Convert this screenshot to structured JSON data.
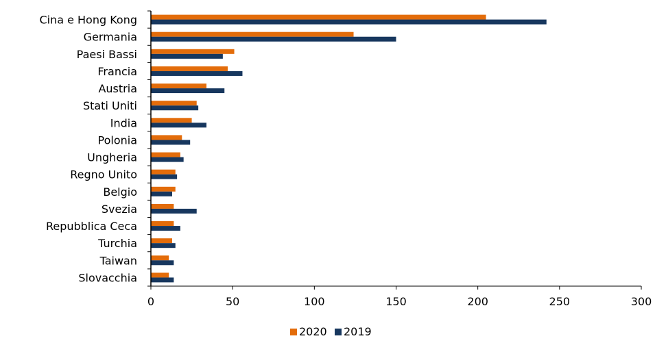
{
  "chart_data": {
    "type": "bar",
    "orientation": "horizontal",
    "categories": [
      "Cina e Hong Kong",
      "Germania",
      "Paesi Bassi",
      "Francia",
      "Austria",
      "Stati Uniti",
      "India",
      "Polonia",
      "Ungheria",
      "Regno Unito",
      "Belgio",
      "Svezia",
      "Repubblica Ceca",
      "Turchia",
      "Taiwan",
      "Slovacchia"
    ],
    "series": [
      {
        "name": "2020",
        "color": "#E36C0A",
        "values": [
          205,
          124,
          51,
          47,
          34,
          28,
          25,
          19,
          18,
          15,
          15,
          14,
          14,
          13,
          11,
          11
        ]
      },
      {
        "name": "2019",
        "color": "#17375E",
        "values": [
          242,
          150,
          44,
          56,
          45,
          29,
          34,
          24,
          20,
          16,
          13,
          28,
          18,
          15,
          14,
          14
        ]
      }
    ],
    "xlim": [
      0,
      300
    ],
    "xticks": [
      "0",
      "50",
      "100",
      "150",
      "200",
      "250",
      "300"
    ],
    "grid": false,
    "legend": "bottom-center",
    "title": "",
    "xlabel": "",
    "ylabel": ""
  }
}
